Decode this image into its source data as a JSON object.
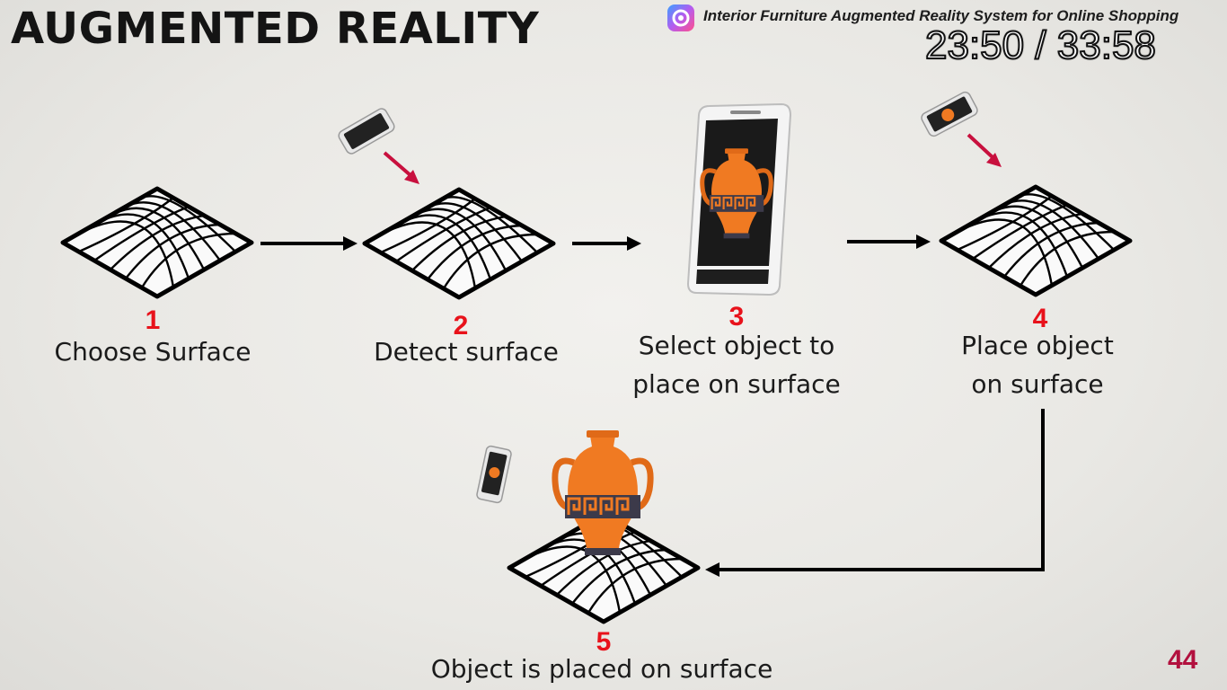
{
  "slide": {
    "title": "AUGMENTED REALITY",
    "header_caption": "Interior Furniture Augmented Reality System for Online Shopping",
    "timer": "23:50 / 33:58",
    "page_number": "44"
  },
  "steps": [
    {
      "number": "1",
      "label": "Choose Surface"
    },
    {
      "number": "2",
      "label": "Detect surface"
    },
    {
      "number": "3",
      "label_line1": "Select object to",
      "label_line2": "place on surface"
    },
    {
      "number": "4",
      "label_line1": "Place object",
      "label_line2": "on surface"
    },
    {
      "number": "5",
      "label": "Object is placed on surface"
    }
  ],
  "colors": {
    "step_number": "#e8121b",
    "page_number": "#b2103e",
    "vase_orange": "#f07a22",
    "pointer_arrow": "#c8103e"
  },
  "icons": [
    "app-logo-icon",
    "surface-grid-icon",
    "phone-icon",
    "vase-icon",
    "flow-arrow-icon"
  ]
}
